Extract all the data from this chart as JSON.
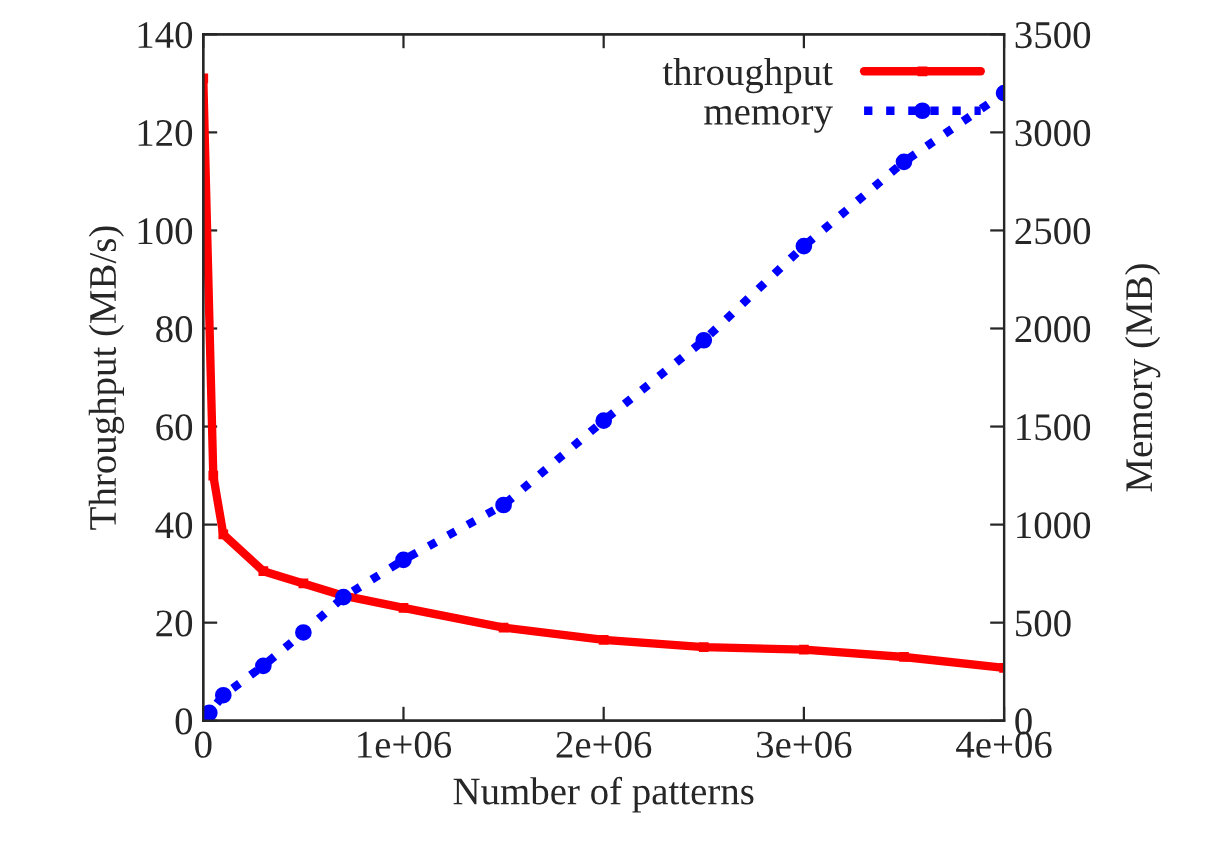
{
  "chart_data": {
    "type": "line",
    "xlabel": "Number of patterns",
    "ylabel": "Throughput (MB/s)",
    "y2label": "Memory (MB)",
    "series": [
      {
        "name": "throughput",
        "color": "#ff0000",
        "line_style": "solid",
        "marker": "square",
        "x": [
          0,
          50000,
          100000,
          300000,
          500000,
          700000,
          1000000,
          1500000,
          2000000,
          2500000,
          3000000,
          3500000,
          4000000
        ],
        "values": [
          131,
          50,
          38,
          30.5,
          28,
          25.5,
          23,
          19,
          16.5,
          15,
          14.5,
          13,
          10.8
        ]
      },
      {
        "name": "memory",
        "color": "#0000ff",
        "line_style": "dotted",
        "marker": "circle",
        "axis": "y2",
        "x": [
          0,
          30000,
          100000,
          300000,
          500000,
          700000,
          1000000,
          1500000,
          2000000,
          2500000,
          3000000,
          3500000,
          4000000
        ],
        "values": [
          0,
          40,
          130,
          280,
          450,
          630,
          820,
          1100,
          1530,
          1940,
          2420,
          2850,
          3200
        ]
      }
    ],
    "xlim": [
      0,
      4000000
    ],
    "xticks": [
      {
        "value": 0,
        "label": "0"
      },
      {
        "value": 1000000,
        "label": "1e+06"
      },
      {
        "value": 2000000,
        "label": "2e+06"
      },
      {
        "value": 3000000,
        "label": "3e+06"
      },
      {
        "value": 4000000,
        "label": "4e+06"
      }
    ],
    "ylim": [
      0,
      140
    ],
    "yticks": [
      0,
      20,
      40,
      60,
      80,
      100,
      120,
      140
    ],
    "y2lim": [
      0,
      3500
    ],
    "y2ticks": [
      0,
      500,
      1000,
      1500,
      2000,
      2500,
      3000,
      3500
    ],
    "legend": "top right",
    "grid": false
  }
}
